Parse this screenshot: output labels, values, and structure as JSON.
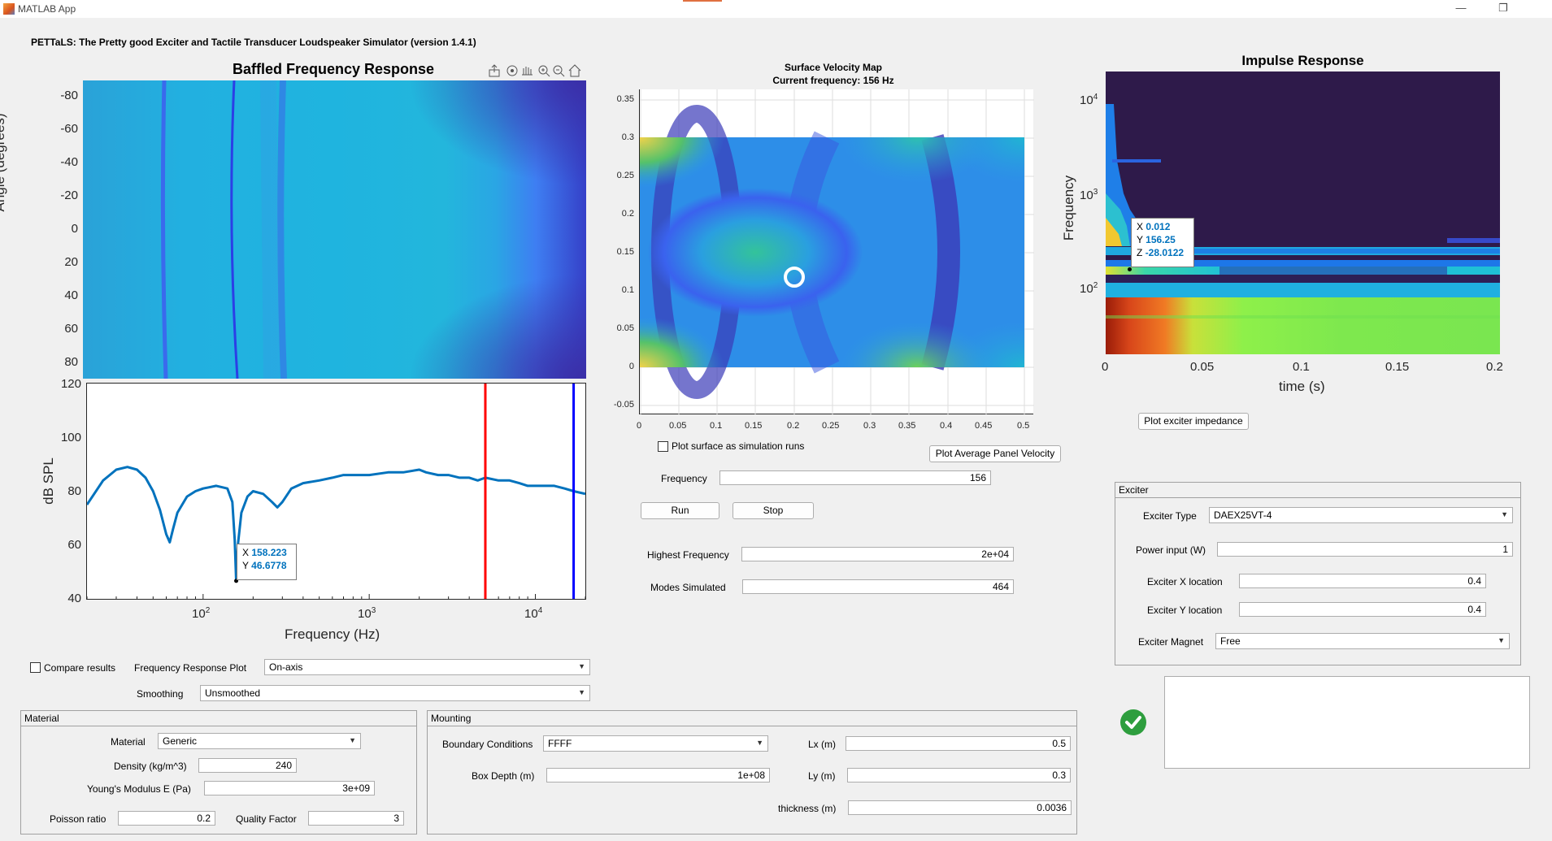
{
  "window": {
    "title": "MATLAB App",
    "minimize": "—",
    "restore": "❐"
  },
  "app_title": "PETTaLS: The Pretty good Exciter and Tactile Transducer Loudspeaker Simulator (version 1.4.1)",
  "toolbar_icons": [
    "export-icon",
    "rotate-icon",
    "pan-icon",
    "zoom-in-icon",
    "zoom-out-icon",
    "home-icon"
  ],
  "baffled": {
    "title": "Baffled Frequency Response",
    "ylabel": "Angle (degrees)",
    "yticks": [
      "-80",
      "-60",
      "-40",
      "-20",
      "0",
      "20",
      "40",
      "60",
      "80"
    ]
  },
  "spl": {
    "ylabel": "dB SPL",
    "xlabel": "Frequency (Hz)",
    "yticks": [
      "120",
      "100",
      "80",
      "60",
      "40"
    ],
    "xticks": [
      {
        "base": "10",
        "exp": "2"
      },
      {
        "base": "10",
        "exp": "3"
      },
      {
        "base": "10",
        "exp": "4"
      }
    ],
    "datatip": {
      "x_label": "X",
      "x": "158.223",
      "y_label": "Y",
      "y": "46.6778"
    }
  },
  "chart_data": [
    {
      "type": "heatmap",
      "title": "Baffled Frequency Response",
      "xlabel": "",
      "ylabel": "Angle (degrees)",
      "xscale": "log",
      "xlim": [
        20,
        20000
      ],
      "ylim": [
        -90,
        90
      ]
    },
    {
      "type": "line",
      "title": "",
      "xlabel": "Frequency (Hz)",
      "ylabel": "dB SPL",
      "xscale": "log",
      "xlim": [
        20,
        20000
      ],
      "ylim": [
        40,
        120
      ],
      "grid": false,
      "series": [
        {
          "color": "#0072bd",
          "x": [
            20,
            25,
            30,
            35,
            40,
            45,
            50,
            55,
            60,
            63,
            66,
            70,
            80,
            90,
            100,
            120,
            140,
            150,
            155,
            158.223,
            162,
            170,
            185,
            200,
            230,
            260,
            280,
            300,
            340,
            400,
            500,
            600,
            700,
            800,
            1000,
            1300,
            1600,
            2000,
            2200,
            2600,
            3000,
            3500,
            4000,
            4500,
            5000,
            6000,
            7000,
            8000,
            9000,
            10000,
            11000,
            13000,
            15000,
            17000,
            20000
          ],
          "y": [
            75,
            84,
            88,
            89,
            88,
            85,
            80,
            73,
            64,
            61,
            66,
            72,
            78,
            80,
            81,
            82,
            81,
            76,
            62,
            46.6778,
            60,
            72,
            78,
            80,
            79,
            76,
            74,
            76,
            81,
            83,
            84,
            85,
            86,
            86,
            86,
            87,
            87,
            88,
            87,
            86,
            86,
            85,
            85,
            84,
            85,
            84,
            84,
            83,
            82,
            82,
            82,
            82,
            81,
            80,
            79
          ]
        },
        {
          "color": "#ff0000",
          "type": "vline",
          "x": [
            5000
          ]
        },
        {
          "color": "#0000ff",
          "type": "vline",
          "x": [
            17000
          ]
        }
      ],
      "annotations": [
        {
          "x": 158.223,
          "y": 46.6778
        }
      ]
    },
    {
      "type": "heatmap",
      "title": "Surface Velocity Map",
      "subtitle": "Current frequency: 156 Hz",
      "xlim": [
        0,
        0.5
      ],
      "ylim": [
        -0.05,
        0.35
      ],
      "marker": {
        "x": 0.2,
        "y": 0.12
      }
    },
    {
      "type": "heatmap",
      "title": "Impulse Response",
      "xlabel": "time (s)",
      "ylabel": "Frequency",
      "xlim": [
        0,
        0.2
      ],
      "yscale": "log",
      "annotations": [
        {
          "x": 0.012,
          "y": 156.25,
          "z": -28.0122
        }
      ]
    }
  ],
  "surface": {
    "title": "Surface Velocity Map",
    "subtitle": "Current frequency: 156 Hz",
    "yticks": [
      "0.35",
      "0.3",
      "0.25",
      "0.2",
      "0.15",
      "0.1",
      "0.05",
      "0",
      "-0.05"
    ],
    "xticks": [
      "0",
      "0.05",
      "0.1",
      "0.15",
      "0.2",
      "0.25",
      "0.3",
      "0.35",
      "0.4",
      "0.45",
      "0.5"
    ]
  },
  "impulse": {
    "title": "Impulse Response",
    "ylabel": "Frequency",
    "xlabel": "time (s)",
    "yticks": [
      {
        "base": "10",
        "exp": "4"
      },
      {
        "base": "10",
        "exp": "3"
      },
      {
        "base": "10",
        "exp": "2"
      }
    ],
    "xticks": [
      "0",
      "0.05",
      "0.1",
      "0.15",
      "0.2"
    ],
    "datatip": {
      "x_label": "X",
      "x": "0.012",
      "y_label": "Y",
      "y": "156.25",
      "z_label": "Z",
      "z": "-28.0122"
    }
  },
  "controls": {
    "plot_exciter_impedance": "Plot exciter impedance",
    "plot_surface_label": "Plot surface as simulation runs",
    "plot_avg_velocity": "Plot Average Panel Velocity",
    "frequency_label": "Frequency",
    "frequency_value": "156",
    "run": "Run",
    "stop": "Stop",
    "highest_freq_label": "Highest Frequency",
    "highest_freq_value": "2e+04",
    "modes_label": "Modes Simulated",
    "modes_value": "464",
    "compare_label": "Compare results",
    "freq_plot_label": "Frequency Response Plot",
    "freq_plot_value": "On-axis",
    "smoothing_label": "Smoothing",
    "smoothing_value": "Unsmoothed"
  },
  "exciter": {
    "title": "Exciter",
    "type_label": "Exciter Type",
    "type_value": "DAEX25VT-4",
    "power_label": "Power input (W)",
    "power_value": "1",
    "xloc_label": "Exciter X location",
    "xloc_value": "0.4",
    "yloc_label": "Exciter Y location",
    "yloc_value": "0.4",
    "magnet_label": "Exciter Magnet",
    "magnet_value": "Free"
  },
  "material": {
    "title": "Material",
    "material_label": "Material",
    "material_value": "Generic",
    "density_label": "Density (kg/m^3)",
    "density_value": "240",
    "youngs_label": "Young's Modulus E (Pa)",
    "youngs_value": "3e+09",
    "poisson_label": "Poisson ratio",
    "poisson_value": "0.2",
    "quality_label": "Quality Factor",
    "quality_value": "3"
  },
  "mounting": {
    "title": "Mounting",
    "boundary_label": "Boundary Conditions",
    "boundary_value": "FFFF",
    "box_label": "Box Depth (m)",
    "box_value": "1e+08",
    "lx_label": "Lx (m)",
    "lx_value": "0.5",
    "ly_label": "Ly (m)",
    "ly_value": "0.3",
    "thickness_label": "thickness (m)",
    "thickness_value": "0.0036"
  },
  "colors": {
    "line": "#0072bd",
    "red_marker": "#ff0000",
    "blue_marker": "#0000ff",
    "status_ok": "#2e9e3e"
  }
}
